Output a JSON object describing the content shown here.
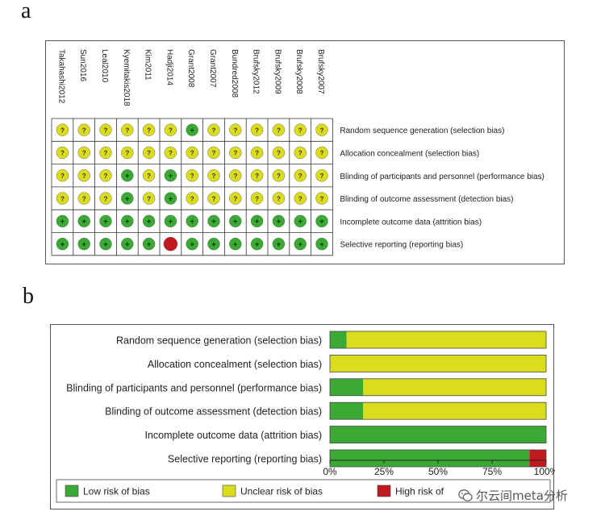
{
  "panels": {
    "a_label": "a",
    "b_label": "b"
  },
  "chart_data": [
    {
      "type": "table",
      "title": "",
      "studies": [
        "Takahashi2012",
        "Sun2016",
        "Leal2010",
        "Kyemitakis2018",
        "Kim2011",
        "Hadji2014",
        "Grant2008",
        "Grant2007",
        "Bundred2008",
        "Brufsky2012",
        "Brufsky2009",
        "Brufsky2008",
        "Brufsky2007"
      ],
      "domains": [
        "Random sequence generation (selection bias)",
        "Allocation concealment (selection bias)",
        "Blinding of participants and personnel (performance bias)",
        "Blinding of outcome assessment (detection bias)",
        "Incomplete outcome data (attrition bias)",
        "Selective reporting (reporting bias)"
      ],
      "judgements": [
        [
          "?",
          "?",
          "?",
          "?",
          "?",
          "?",
          "+",
          "?",
          "?",
          "?",
          "?",
          "?",
          "?"
        ],
        [
          "?",
          "?",
          "?",
          "?",
          "?",
          "?",
          "?",
          "?",
          "?",
          "?",
          "?",
          "?",
          "?"
        ],
        [
          "?",
          "?",
          "?",
          "+",
          "?",
          "+",
          "?",
          "?",
          "?",
          "?",
          "?",
          "?",
          "?"
        ],
        [
          "?",
          "?",
          "?",
          "+",
          "?",
          "+",
          "?",
          "?",
          "?",
          "?",
          "?",
          "?",
          "?"
        ],
        [
          "+",
          "+",
          "+",
          "+",
          "+",
          "+",
          "+",
          "+",
          "+",
          "+",
          "+",
          "+",
          "+"
        ],
        [
          "+",
          "+",
          "+",
          "+",
          "+",
          "-",
          "+",
          "+",
          "+",
          "+",
          "+",
          "+",
          "+"
        ]
      ],
      "symbol_key": {
        "+": "low",
        "?": "unclear",
        "-": "high"
      }
    },
    {
      "type": "bar",
      "stacked": true,
      "orientation": "horizontal",
      "categories": [
        "Random sequence generation (selection bias)",
        "Allocation concealment (selection bias)",
        "Blinding of participants and personnel (performance bias)",
        "Blinding of outcome assessment (detection bias)",
        "Incomplete outcome data (attrition bias)",
        "Selective reporting (reporting bias)"
      ],
      "series": [
        {
          "name": "Low risk of bias",
          "key": "low",
          "values": [
            7.7,
            0,
            15.4,
            15.4,
            100,
            92.3
          ]
        },
        {
          "name": "Unclear risk of bias",
          "key": "unclear",
          "values": [
            92.3,
            100,
            84.6,
            84.6,
            0,
            0
          ]
        },
        {
          "name": "High risk of bias",
          "key": "high",
          "values": [
            0,
            0,
            0,
            0,
            0,
            7.7
          ]
        }
      ],
      "xlim": [
        0,
        100
      ],
      "ticks": [
        0,
        25,
        50,
        75,
        100
      ],
      "tick_labels": [
        "0%",
        "25%",
        "50%",
        "75%",
        "100%"
      ],
      "legend_position": "bottom",
      "legend": [
        {
          "key": "low",
          "label": "Low risk of bias"
        },
        {
          "key": "unclear",
          "label": "Unclear risk of bias"
        },
        {
          "key": "high",
          "label": "High risk of"
        }
      ]
    }
  ],
  "colors": {
    "low": "#3aaa35",
    "unclear": "#dcdc1e",
    "high": "#c0191f"
  },
  "watermark": {
    "text": "尔云间meta分析",
    "icon": "wechat-icon"
  }
}
